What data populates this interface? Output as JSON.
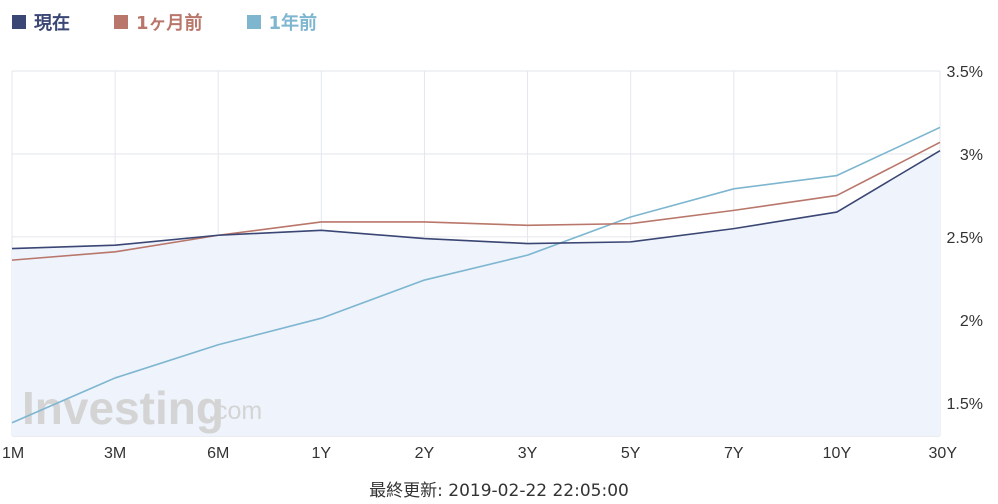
{
  "chart_data": {
    "type": "line",
    "categories": [
      "1M",
      "3M",
      "6M",
      "1Y",
      "2Y",
      "3Y",
      "5Y",
      "7Y",
      "10Y",
      "30Y"
    ],
    "series": [
      {
        "name": "現在",
        "color": "#3a4673",
        "values": [
          2.43,
          2.45,
          2.51,
          2.54,
          2.49,
          2.46,
          2.47,
          2.55,
          2.65,
          3.02
        ]
      },
      {
        "name": "1ヶ月前",
        "color": "#b9766a",
        "values": [
          2.36,
          2.41,
          2.51,
          2.59,
          2.59,
          2.57,
          2.58,
          2.66,
          2.75,
          3.07
        ]
      },
      {
        "name": "1年前",
        "color": "#7eb6d0",
        "values": [
          1.38,
          1.65,
          1.85,
          2.01,
          2.24,
          2.39,
          2.62,
          2.79,
          2.87,
          3.16
        ]
      }
    ],
    "y_ticks": [
      "1.5%",
      "2%",
      "2.5%",
      "3%",
      "3.5%"
    ],
    "y_tick_values": [
      1.5,
      2.0,
      2.5,
      3.0,
      3.5
    ],
    "ylim": [
      1.3,
      3.5
    ],
    "grid": true,
    "legend_position": "top-left",
    "area_fill_series": "現在",
    "area_fill_color": "#eef3fc",
    "watermark": "Investing.com"
  },
  "footer": {
    "last_updated": "最終更新: 2019-02-22 22:05:00"
  }
}
